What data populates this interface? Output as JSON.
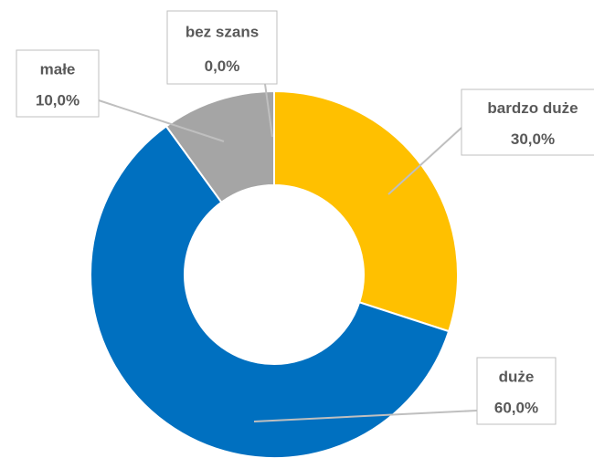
{
  "chart_data": {
    "type": "donut",
    "categories": [
      "bardzo duże",
      "duże",
      "małe",
      "bez szans"
    ],
    "values": [
      30,
      60,
      10,
      0
    ],
    "value_labels": [
      "30,0%",
      "60,0%",
      "10,0%",
      "0,0%"
    ],
    "colors": [
      "#ffc000",
      "#0070c0",
      "#a5a5a5",
      "#4472c4"
    ]
  }
}
